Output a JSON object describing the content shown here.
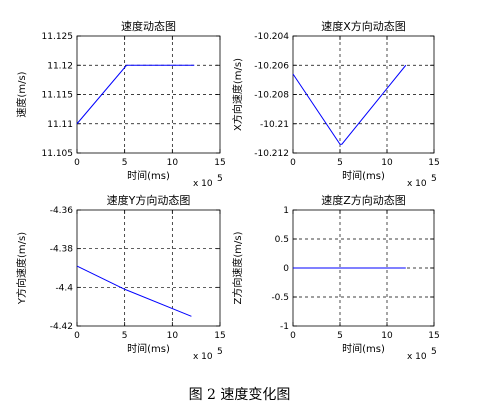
{
  "figure_caption": "图 2  速度变化图",
  "chart_data": [
    {
      "type": "line",
      "title": "速度动态图",
      "xlabel": "时间(ms)",
      "ylabel": "速度(m/s)",
      "xlim": [
        0,
        15
      ],
      "ylim": [
        11.105,
        11.125
      ],
      "x_exponent_label": "x 10",
      "x_exponent_power": "5",
      "x_ticks": [
        "0",
        "5",
        "10",
        "15"
      ],
      "y_ticks": [
        "11.105",
        "11.11",
        "11.115",
        "11.12",
        "11.125"
      ],
      "grid": true,
      "series": [
        {
          "x": [
            0,
            5.2,
            12.3
          ],
          "y": [
            11.11,
            11.12,
            11.12
          ]
        }
      ]
    },
    {
      "type": "line",
      "title": "速度X方向动态图",
      "xlabel": "时间(ms)",
      "ylabel": "X方向速度(m/s)",
      "xlim": [
        0,
        15
      ],
      "ylim": [
        -10.212,
        -10.204
      ],
      "x_exponent_label": "x 10",
      "x_exponent_power": "5",
      "x_ticks": [
        "0",
        "5",
        "10",
        "15"
      ],
      "y_ticks": [
        "-10.204",
        "-10.206",
        "-10.208",
        "-10.21",
        "-10.212"
      ],
      "grid": true,
      "series": [
        {
          "x": [
            0,
            5.0,
            5.2,
            12.0
          ],
          "y": [
            -10.2066,
            -10.2114,
            -10.2114,
            -10.206
          ]
        }
      ]
    },
    {
      "type": "line",
      "title": "速度Y方向动态图",
      "xlabel": "时间(ms)",
      "ylabel": "Y方向速度(m/s)",
      "xlim": [
        0,
        15
      ],
      "ylim": [
        -4.42,
        -4.36
      ],
      "x_exponent_label": "x 10",
      "x_exponent_power": "5",
      "x_ticks": [
        "0",
        "5",
        "10",
        "15"
      ],
      "y_ticks": [
        "-4.36",
        "-4.38",
        "-4.4",
        "-4.42"
      ],
      "grid": true,
      "series": [
        {
          "x": [
            0,
            5,
            12
          ],
          "y": [
            -4.389,
            -4.401,
            -4.415
          ]
        }
      ]
    },
    {
      "type": "line",
      "title": "速度Z方向动态图",
      "xlabel": "时间(ms)",
      "ylabel": "Z方向速度(m/s)",
      "xlim": [
        0,
        15
      ],
      "ylim": [
        -1,
        1
      ],
      "x_exponent_label": "x 10",
      "x_exponent_power": "5",
      "x_ticks": [
        "0",
        "5",
        "10",
        "15"
      ],
      "y_ticks": [
        "1",
        "0.5",
        "0",
        "-0.5",
        "-1"
      ],
      "grid": true,
      "series": [
        {
          "x": [
            0,
            12
          ],
          "y": [
            0,
            0
          ]
        }
      ]
    }
  ]
}
